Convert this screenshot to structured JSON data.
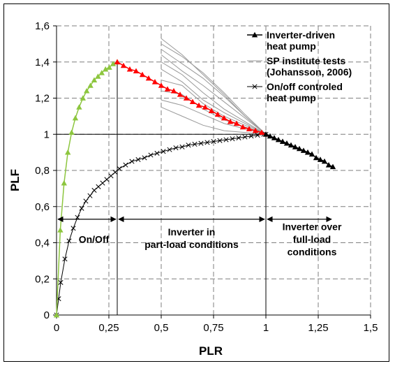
{
  "chart_data": {
    "type": "line",
    "title": "",
    "xlabel": "PLR",
    "ylabel": "PLF",
    "xlim": [
      0,
      1.5
    ],
    "ylim": [
      0,
      1.6
    ],
    "x_ticks": [
      "0",
      "0,25",
      "0,5",
      "0,75",
      "1",
      "1,25",
      "1,5"
    ],
    "y_ticks": [
      "0",
      "0,2",
      "0,4",
      "0,6",
      "0,8",
      "1",
      "1,2",
      "1,4",
      "1,6"
    ],
    "x_tick_values": [
      0,
      0.25,
      0.5,
      0.75,
      1,
      1.25,
      1.5
    ],
    "y_tick_values": [
      0,
      0.2,
      0.4,
      0.6,
      0.8,
      1,
      1.2,
      1.4,
      1.6
    ],
    "grid": true,
    "legend_position": "top-right",
    "series": [
      {
        "name": "Inverter-driven heat pump",
        "marker": "triangle",
        "segments": [
          {
            "color": "#8DC63F",
            "x": [
              0,
              0.018,
              0.036,
              0.054,
              0.072,
              0.09,
              0.108,
              0.126,
              0.144,
              0.162,
              0.18,
              0.198,
              0.216,
              0.234,
              0.252,
              0.27,
              0.29
            ],
            "y": [
              0,
              0.47,
              0.73,
              0.9,
              1.01,
              1.09,
              1.15,
              1.2,
              1.24,
              1.27,
              1.3,
              1.32,
              1.34,
              1.36,
              1.37,
              1.39,
              1.4
            ]
          },
          {
            "color": "#FF0000",
            "x": [
              0.29,
              0.32,
              0.35,
              0.38,
              0.41,
              0.44,
              0.47,
              0.5,
              0.53,
              0.56,
              0.59,
              0.62,
              0.65,
              0.68,
              0.71,
              0.74,
              0.77,
              0.8,
              0.83,
              0.86,
              0.89,
              0.92,
              0.95,
              0.98,
              1.0
            ],
            "y": [
              1.4,
              1.38,
              1.36,
              1.35,
              1.33,
              1.31,
              1.29,
              1.27,
              1.25,
              1.24,
              1.22,
              1.2,
              1.18,
              1.16,
              1.15,
              1.13,
              1.11,
              1.09,
              1.07,
              1.06,
              1.04,
              1.03,
              1.02,
              1.01,
              1.0
            ]
          },
          {
            "color": "#000000",
            "x": [
              1.0,
              1.02,
              1.04,
              1.06,
              1.08,
              1.1,
              1.12,
              1.14,
              1.16,
              1.18,
              1.2,
              1.22,
              1.24,
              1.26,
              1.28,
              1.3,
              1.32
            ],
            "y": [
              1.0,
              0.99,
              0.98,
              0.97,
              0.96,
              0.95,
              0.94,
              0.93,
              0.92,
              0.91,
              0.9,
              0.89,
              0.87,
              0.86,
              0.85,
              0.83,
              0.82
            ]
          }
        ]
      },
      {
        "name": "SP institute tests (Johansson, 2006)",
        "marker": "none",
        "color": "#999999",
        "lines": [
          {
            "x": [
              0.5,
              0.6,
              0.7,
              0.8,
              0.9,
              1.0
            ],
            "y": [
              1.53,
              1.44,
              1.33,
              1.22,
              1.1,
              1.0
            ]
          },
          {
            "x": [
              0.5,
              0.6,
              0.7,
              0.8,
              0.9,
              1.0
            ],
            "y": [
              1.5,
              1.43,
              1.34,
              1.23,
              1.11,
              1.0
            ]
          },
          {
            "x": [
              0.5,
              0.6,
              0.7,
              0.8,
              0.9,
              1.0
            ],
            "y": [
              1.47,
              1.39,
              1.31,
              1.21,
              1.1,
              1.0
            ]
          },
          {
            "x": [
              0.5,
              0.6,
              0.7,
              0.8,
              0.9,
              1.0
            ],
            "y": [
              1.44,
              1.35,
              1.27,
              1.18,
              1.09,
              1.0
            ]
          },
          {
            "x": [
              0.5,
              0.6,
              0.7,
              0.8,
              0.9,
              1.0
            ],
            "y": [
              1.4,
              1.33,
              1.23,
              1.14,
              1.07,
              1.0
            ]
          },
          {
            "x": [
              0.5,
              0.6,
              0.7,
              0.8,
              0.9,
              1.0
            ],
            "y": [
              1.36,
              1.29,
              1.19,
              1.12,
              1.06,
              1.0
            ]
          },
          {
            "x": [
              0.5,
              0.6,
              0.7,
              0.8,
              0.9,
              1.0
            ],
            "y": [
              1.3,
              1.27,
              1.17,
              1.1,
              1.05,
              1.0
            ]
          },
          {
            "x": [
              0.5,
              0.6,
              0.7,
              0.8,
              0.9,
              1.0
            ],
            "y": [
              1.24,
              1.22,
              1.14,
              1.08,
              1.04,
              1.0
            ]
          },
          {
            "x": [
              0.5,
              0.6,
              0.7,
              0.8,
              0.9,
              1.0
            ],
            "y": [
              1.19,
              1.16,
              1.11,
              1.06,
              1.03,
              1.0
            ]
          },
          {
            "x": [
              0.5,
              0.6,
              0.7,
              0.8,
              0.9,
              1.0
            ],
            "y": [
              1.15,
              1.1,
              1.05,
              1.02,
              1.01,
              1.0
            ]
          }
        ]
      },
      {
        "name": "On/off controled heat pump",
        "marker": "x",
        "color": "#000000",
        "x": [
          0,
          0.01,
          0.02,
          0.04,
          0.06,
          0.08,
          0.1,
          0.12,
          0.14,
          0.16,
          0.18,
          0.2,
          0.22,
          0.24,
          0.26,
          0.28,
          0.3,
          0.33,
          0.36,
          0.39,
          0.42,
          0.45,
          0.48,
          0.51,
          0.54,
          0.57,
          0.6,
          0.63,
          0.66,
          0.69,
          0.72,
          0.75,
          0.78,
          0.81,
          0.84,
          0.87,
          0.9,
          0.93,
          0.96,
          0.99,
          1.0
        ],
        "y": [
          0,
          0.09,
          0.18,
          0.31,
          0.41,
          0.48,
          0.54,
          0.59,
          0.63,
          0.66,
          0.69,
          0.71,
          0.73,
          0.75,
          0.77,
          0.79,
          0.81,
          0.83,
          0.85,
          0.86,
          0.87,
          0.885,
          0.895,
          0.905,
          0.915,
          0.925,
          0.93,
          0.94,
          0.945,
          0.95,
          0.955,
          0.96,
          0.965,
          0.97,
          0.975,
          0.98,
          0.985,
          0.99,
          0.995,
          1.0,
          1.0
        ]
      }
    ],
    "legend": [
      {
        "label_lines": [
          "Inverter-driven",
          "heat pump"
        ],
        "marker": "triangle"
      },
      {
        "label_lines": [
          "SP institute tests",
          "(Johansson, 2006)"
        ],
        "marker": "none"
      },
      {
        "label_lines": [
          "On/off controled",
          "heat pump"
        ],
        "marker": "x"
      }
    ],
    "reference_lines": {
      "horizontal_y": 1.0,
      "vertical_x": [
        0.29,
        1.0
      ]
    },
    "regions": [
      {
        "from": 0,
        "to": 0.29,
        "arrow_y": 0.53,
        "label_lines": [
          "On/Off"
        ],
        "label_y": 0.4
      },
      {
        "from": 0.29,
        "to": 1.0,
        "arrow_y": 0.53,
        "label_lines": [
          "Inverter in",
          "part-load conditions"
        ],
        "label_y": 0.44
      },
      {
        "from": 1.0,
        "to": 1.32,
        "arrow_y": 0.53,
        "label_lines": [
          "Inverter over",
          "full-load",
          "conditions"
        ],
        "label_y": 0.47
      }
    ]
  }
}
